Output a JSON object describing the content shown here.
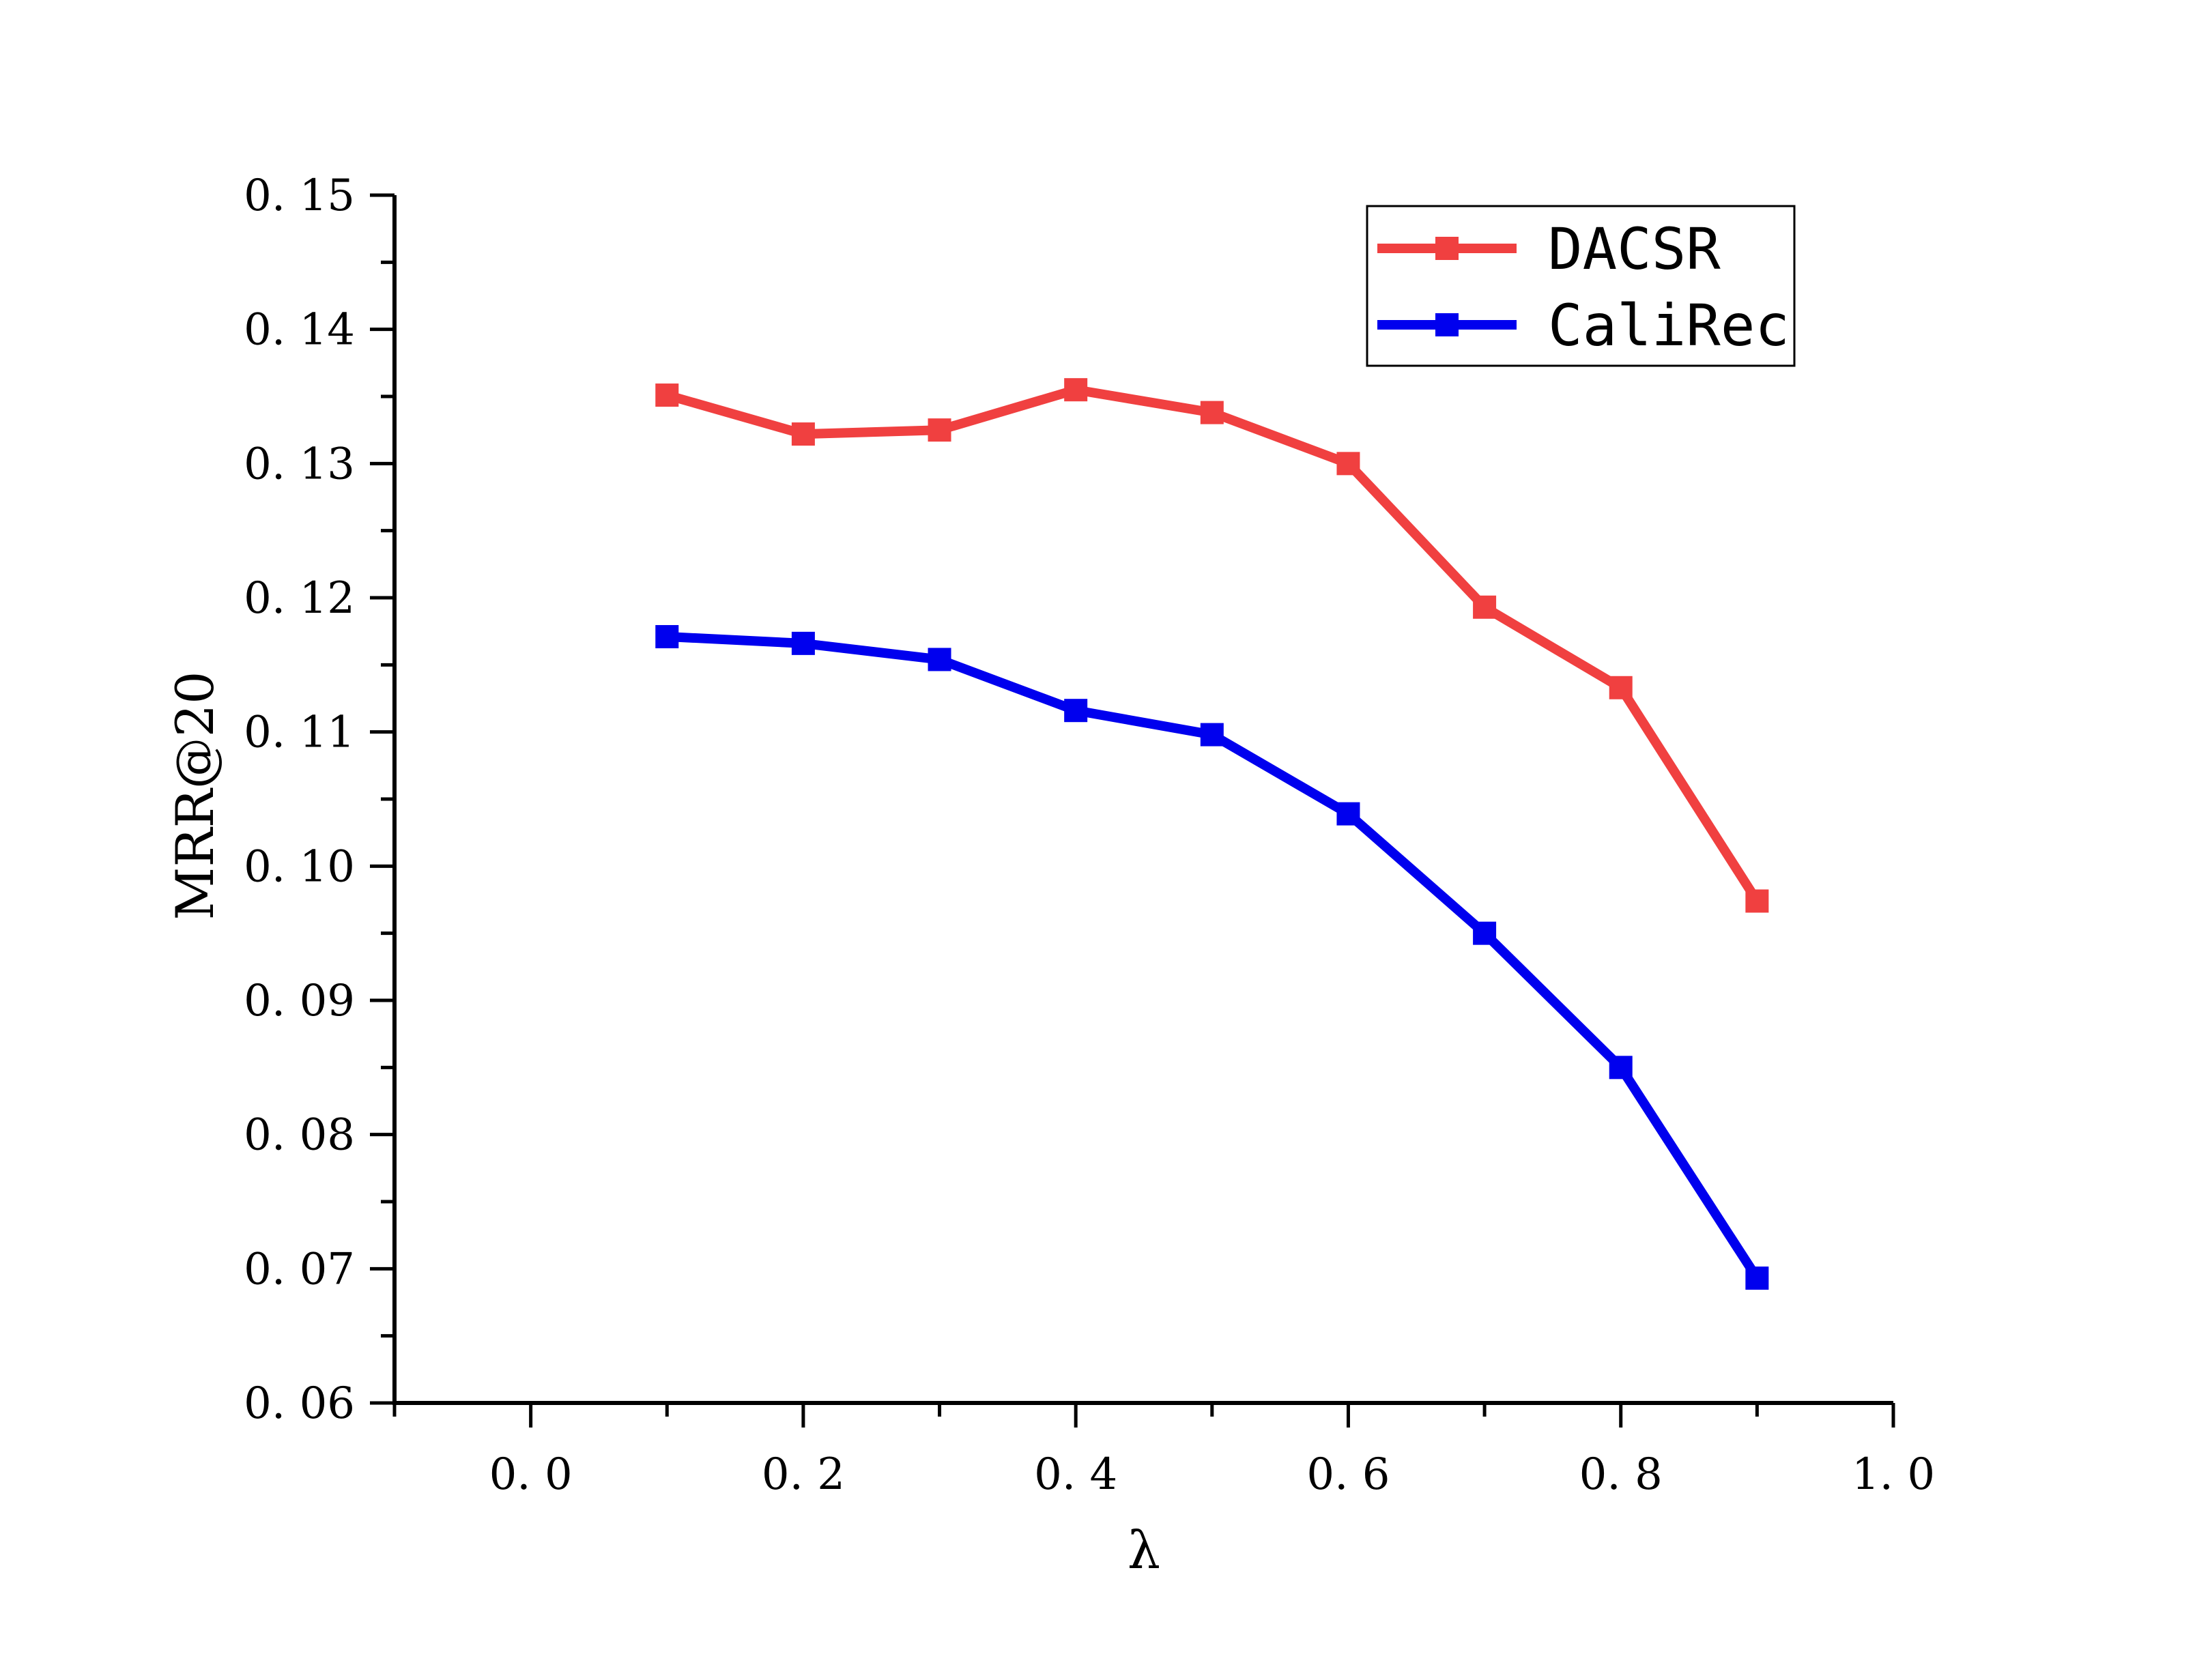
{
  "chart_data": {
    "type": "line",
    "title": "",
    "xlabel": "λ",
    "ylabel": "MRR@20",
    "xlim": [
      -0.1,
      1.0
    ],
    "ylim": [
      0.06,
      0.15
    ],
    "x_ticks": [
      0.0,
      0.2,
      0.4,
      0.6,
      0.8,
      1.0
    ],
    "x_tick_labels": [
      "0. 0",
      "0. 2",
      "0. 4",
      "0. 6",
      "0. 8",
      "1. 0"
    ],
    "y_ticks": [
      0.06,
      0.07,
      0.08,
      0.09,
      0.1,
      0.11,
      0.12,
      0.13,
      0.14,
      0.15
    ],
    "y_tick_labels": [
      "0. 06",
      "0. 07",
      "0. 08",
      "0. 09",
      "0. 10",
      "0. 11",
      "0. 12",
      "0. 13",
      "0. 14",
      "0. 15"
    ],
    "grid": false,
    "legend_position": "top-right",
    "x": [
      0.1,
      0.2,
      0.3,
      0.4,
      0.5,
      0.6,
      0.7,
      0.8,
      0.9
    ],
    "series": [
      {
        "name": "DACSR",
        "color": "#f04040",
        "marker": "square",
        "values": [
          0.1351,
          0.1322,
          0.1325,
          0.1355,
          0.1338,
          0.13,
          0.1193,
          0.1133,
          0.0974
        ]
      },
      {
        "name": "CaliRec",
        "color": "#0000ee",
        "marker": "square",
        "values": [
          0.1171,
          0.1166,
          0.1154,
          0.1116,
          0.1098,
          0.1039,
          0.095,
          0.085,
          0.0693
        ]
      }
    ]
  }
}
